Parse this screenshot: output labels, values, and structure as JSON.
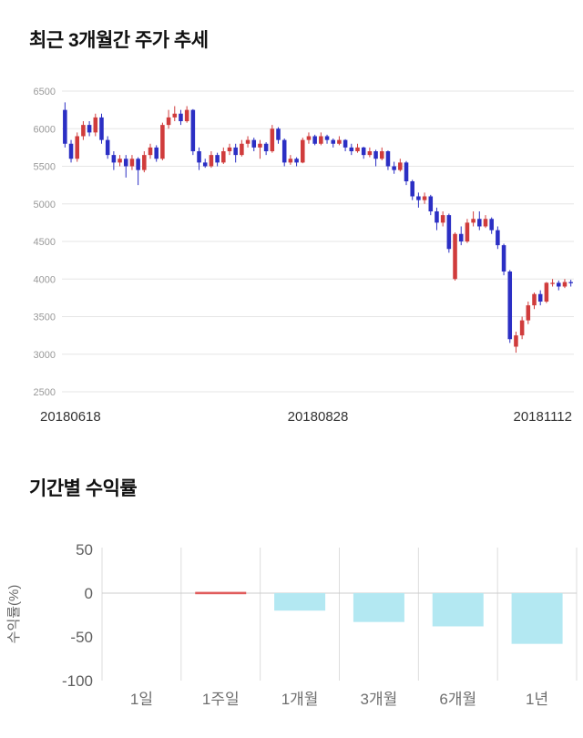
{
  "page": {
    "background": "#ffffff"
  },
  "price_section": {
    "title": "최근 3개월간 주가 추세"
  },
  "returns_section": {
    "title": "기간별 수익률"
  },
  "chart_data": [
    {
      "type": "candlestick",
      "title": "최근 3개월간 주가 추세",
      "ylim": [
        2500,
        6500
      ],
      "yticks": [
        6500,
        6000,
        5500,
        5000,
        4500,
        4000,
        3500,
        3000,
        2500
      ],
      "xtick_labels": [
        "20180618",
        "20180828",
        "20181112"
      ],
      "up_color": "#d03c3c",
      "down_color": "#2b2fc4",
      "grid_color": "#e6e6e6",
      "tick_color": "#999999",
      "xlabel_color": "#333333",
      "candles": [
        [
          6250,
          6350,
          5750,
          5800
        ],
        [
          5800,
          5850,
          5550,
          5600
        ],
        [
          5600,
          5950,
          5560,
          5900
        ],
        [
          5900,
          6100,
          5850,
          6050
        ],
        [
          6050,
          6100,
          5900,
          5950
        ],
        [
          5950,
          6200,
          5900,
          6150
        ],
        [
          6150,
          6200,
          5800,
          5850
        ],
        [
          5850,
          5900,
          5600,
          5650
        ],
        [
          5650,
          5700,
          5450,
          5550
        ],
        [
          5550,
          5650,
          5500,
          5600
        ],
        [
          5600,
          5650,
          5350,
          5500
        ],
        [
          5500,
          5650,
          5450,
          5600
        ],
        [
          5600,
          5620,
          5250,
          5450
        ],
        [
          5450,
          5700,
          5420,
          5650
        ],
        [
          5650,
          5800,
          5600,
          5750
        ],
        [
          5750,
          5780,
          5560,
          5600
        ],
        [
          5600,
          6080,
          5580,
          6050
        ],
        [
          6050,
          6250,
          6000,
          6150
        ],
        [
          6150,
          6300,
          6100,
          6200
        ],
        [
          6200,
          6250,
          6050,
          6100
        ],
        [
          6100,
          6300,
          6080,
          6250
        ],
        [
          6250,
          6260,
          5650,
          5700
        ],
        [
          5700,
          5750,
          5450,
          5550
        ],
        [
          5550,
          5600,
          5480,
          5500
        ],
        [
          5500,
          5700,
          5480,
          5650
        ],
        [
          5650,
          5680,
          5500,
          5550
        ],
        [
          5550,
          5750,
          5530,
          5700
        ],
        [
          5700,
          5800,
          5650,
          5750
        ],
        [
          5750,
          5800,
          5550,
          5650
        ],
        [
          5650,
          5850,
          5630,
          5800
        ],
        [
          5800,
          5900,
          5750,
          5850
        ],
        [
          5850,
          5880,
          5700,
          5750
        ],
        [
          5750,
          5850,
          5600,
          5800
        ],
        [
          5800,
          5820,
          5650,
          5700
        ],
        [
          5700,
          6050,
          5680,
          6000
        ],
        [
          6000,
          6020,
          5800,
          5850
        ],
        [
          5850,
          5870,
          5500,
          5550
        ],
        [
          5550,
          5650,
          5520,
          5600
        ],
        [
          5600,
          5620,
          5500,
          5550
        ],
        [
          5550,
          5880,
          5540,
          5850
        ],
        [
          5850,
          5950,
          5800,
          5900
        ],
        [
          5900,
          5920,
          5780,
          5800
        ],
        [
          5800,
          5950,
          5780,
          5900
        ],
        [
          5900,
          5920,
          5800,
          5850
        ],
        [
          5850,
          5870,
          5750,
          5800
        ],
        [
          5800,
          5900,
          5780,
          5850
        ],
        [
          5850,
          5860,
          5700,
          5750
        ],
        [
          5750,
          5800,
          5650,
          5700
        ],
        [
          5700,
          5800,
          5680,
          5750
        ],
        [
          5750,
          5760,
          5600,
          5650
        ],
        [
          5650,
          5750,
          5620,
          5700
        ],
        [
          5700,
          5720,
          5500,
          5600
        ],
        [
          5600,
          5750,
          5580,
          5700
        ],
        [
          5700,
          5710,
          5450,
          5500
        ],
        [
          5500,
          5560,
          5400,
          5450
        ],
        [
          5450,
          5600,
          5430,
          5550
        ],
        [
          5550,
          5570,
          5250,
          5300
        ],
        [
          5300,
          5320,
          5050,
          5100
        ],
        [
          5100,
          5150,
          4950,
          5050
        ],
        [
          5050,
          5150,
          5000,
          5100
        ],
        [
          5100,
          5120,
          4850,
          4900
        ],
        [
          4900,
          4950,
          4650,
          4750
        ],
        [
          4750,
          4900,
          4700,
          4850
        ],
        [
          4850,
          4870,
          4350,
          4400
        ],
        [
          4000,
          4620,
          3980,
          4600
        ],
        [
          4600,
          4700,
          4450,
          4500
        ],
        [
          4500,
          4800,
          4480,
          4750
        ],
        [
          4750,
          4900,
          4700,
          4800
        ],
        [
          4800,
          4900,
          4650,
          4700
        ],
        [
          4700,
          4850,
          4680,
          4800
        ],
        [
          4800,
          4820,
          4600,
          4650
        ],
        [
          4650,
          4700,
          4400,
          4450
        ],
        [
          4450,
          4470,
          4050,
          4100
        ],
        [
          4100,
          4120,
          3150,
          3200
        ],
        [
          3100,
          3300,
          3020,
          3250
        ],
        [
          3250,
          3500,
          3200,
          3450
        ],
        [
          3450,
          3700,
          3400,
          3650
        ],
        [
          3650,
          3820,
          3600,
          3800
        ],
        [
          3800,
          3850,
          3650,
          3700
        ],
        [
          3700,
          3960,
          3680,
          3950
        ],
        [
          3950,
          4000,
          3900,
          3950
        ],
        [
          3950,
          3980,
          3850,
          3900
        ],
        [
          3900,
          4000,
          3880,
          3960
        ],
        [
          3960,
          3990,
          3900,
          3950
        ]
      ]
    },
    {
      "type": "bar",
      "title": "기간별 수익률",
      "categories": [
        "1일",
        "1주일",
        "1개월",
        "3개월",
        "6개월",
        "1년"
      ],
      "values": [
        0.0,
        0.4,
        -20,
        -33,
        -38,
        -58
      ],
      "ylabel": "수익률(%)",
      "yticks": [
        50,
        0,
        -50,
        -100
      ],
      "ylim": [
        -100,
        50
      ],
      "positive_color": "#e05c5c",
      "negative_color": "#b3e8f2",
      "grid_color": "#dddddd",
      "tick_color": "#606060",
      "category_color": "#6e6e6e",
      "ylabel_color": "#666666",
      "legend_position": "none",
      "grid": "vertical-separators-and-zero-line"
    }
  ]
}
